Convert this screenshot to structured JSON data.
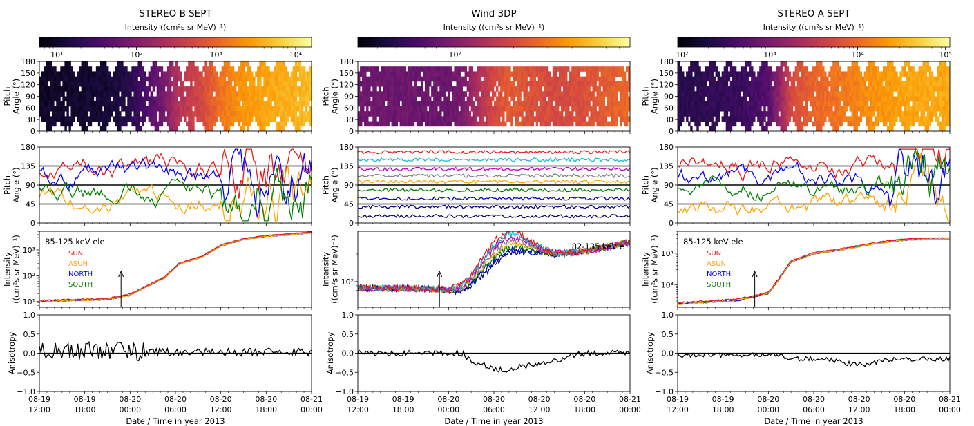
{
  "figure": {
    "xlabel": "Date / Time in year 2013",
    "row_ylabels": [
      [
        "Pitch",
        "Angle (°)"
      ],
      [
        "Pitch",
        "Angle (°)"
      ],
      [
        "Intensity",
        "((cm²s sr MeV)⁻¹)"
      ],
      [
        "Anisotropy"
      ]
    ],
    "x_ticks": [
      [
        "08-19",
        "12:00"
      ],
      [
        "08-19",
        "18:00"
      ],
      [
        "08-20",
        "00:00"
      ],
      [
        "08-20",
        "06:00"
      ],
      [
        "08-20",
        "12:00"
      ],
      [
        "08-20",
        "18:00"
      ],
      [
        "08-21",
        "00:00"
      ]
    ],
    "pitch_ticks": [
      "0",
      "30",
      "60",
      "90",
      "120",
      "150",
      "180"
    ],
    "pa_ticks": [
      "0",
      "45",
      "90",
      "135",
      "180"
    ],
    "aniso_ticks": [
      "−1.0",
      "−0.5",
      "0.0",
      "0.5",
      "1.0"
    ]
  },
  "colors": {
    "sun": "#e41a1c",
    "asun": "#ffa500",
    "north": "#0000ff",
    "south": "#008000",
    "colormap": [
      "#000004",
      "#1b0c41",
      "#4a0c6b",
      "#781c6d",
      "#a52c60",
      "#cf4446",
      "#ed6925",
      "#fb9b06",
      "#f7d13d",
      "#fcffa4"
    ]
  },
  "chart_data": [
    {
      "type": "line",
      "title": "STEREO B SEPT",
      "colorbar": {
        "label": "Intensity ((cm²s sr MeV)⁻¹)",
        "log_range": [
          0.78,
          4.2
        ],
        "ticks": [
          {
            "label": "10¹",
            "value": 10
          },
          {
            "label": "10²",
            "value": 100
          },
          {
            "label": "10³",
            "value": 1000
          },
          {
            "label": "10⁴",
            "value": 10000
          }
        ]
      },
      "energy_label": "85-125 keV ele",
      "legend": [
        "SUN",
        "ASUN",
        "NORTH",
        "SOUTH"
      ],
      "intensity_axis": {
        "log_range": [
          0.78,
          3.72
        ],
        "ticks": [
          {
            "label": "10¹",
            "value": 10
          },
          {
            "label": "10²",
            "value": 100
          },
          {
            "label": "10³",
            "value": 1000
          }
        ]
      },
      "onset_arrow_x": 10.8,
      "x_range_hours": [
        0,
        36
      ],
      "intensity_log_profile": [
        [
          0,
          1.0
        ],
        [
          9,
          1.08
        ],
        [
          12,
          1.25
        ],
        [
          14,
          1.55
        ],
        [
          16.5,
          1.9
        ],
        [
          18.5,
          2.45
        ],
        [
          21.5,
          2.72
        ],
        [
          24,
          3.15
        ],
        [
          27,
          3.4
        ],
        [
          30,
          3.52
        ],
        [
          33,
          3.58
        ],
        [
          36,
          3.66
        ]
      ],
      "pitch_angle_lines": {
        "pattern": "swapping",
        "means": [
          130,
          50,
          115,
          70
        ]
      },
      "anisotropy_profile": {
        "mean": 0.02,
        "spread": 0.17
      }
    },
    {
      "type": "line",
      "title": "Wind 3DP",
      "colorbar": {
        "label": "Intensity ((cm²s sr MeV)⁻¹)",
        "log_range": [
          1.5,
          2.9
        ],
        "ticks": [
          {
            "label": "10²",
            "value": 100
          }
        ]
      },
      "energy_label": "82-135 keV e",
      "legend": [],
      "intensity_axis": {
        "log_range": [
          1.72,
          2.55
        ],
        "ticks": [
          {
            "label": "10²",
            "value": 100
          }
        ]
      },
      "onset_arrow_x": 10.8,
      "x_range_hours": [
        0,
        36
      ],
      "intensity_log_profile": [
        [
          0,
          1.93
        ],
        [
          12,
          1.92
        ],
        [
          14,
          1.97
        ],
        [
          16,
          2.15
        ],
        [
          18,
          2.3
        ],
        [
          20,
          2.38
        ],
        [
          23,
          2.33
        ],
        [
          26,
          2.3
        ],
        [
          30,
          2.33
        ],
        [
          33,
          2.38
        ],
        [
          36,
          2.43
        ]
      ],
      "pitch_angle_lines": {
        "pattern": "fixed",
        "means": [
          168,
          150,
          128,
          112,
          98,
          78,
          58,
          38,
          16
        ]
      },
      "anisotropy_profile": {
        "mean": -0.05,
        "spread": 0.08
      }
    },
    {
      "type": "line",
      "title": "STEREO A SEPT",
      "colorbar": {
        "label": "Intensity ((cm²s sr MeV)⁻¹)",
        "log_range": [
          1.95,
          5.05
        ],
        "ticks": [
          {
            "label": "10²",
            "value": 100
          },
          {
            "label": "10³",
            "value": 1000
          },
          {
            "label": "10⁴",
            "value": 10000
          },
          {
            "label": "10⁵",
            "value": 100000
          }
        ]
      },
      "energy_label": "85-125 keV ele",
      "legend": [
        "SUN",
        "ASUN",
        "NORTH",
        "SOUTH"
      ],
      "intensity_axis": {
        "log_range": [
          2.28,
          4.7
        ],
        "ticks": [
          {
            "label": "10³",
            "value": 1000
          },
          {
            "label": "10⁴",
            "value": 10000
          }
        ]
      },
      "onset_arrow_x": 10.2,
      "x_range_hours": [
        0,
        36
      ],
      "intensity_log_profile": [
        [
          0,
          2.38
        ],
        [
          8,
          2.5
        ],
        [
          12,
          2.72
        ],
        [
          13.5,
          3.2
        ],
        [
          15,
          3.72
        ],
        [
          18,
          3.98
        ],
        [
          22,
          4.12
        ],
        [
          26,
          4.3
        ],
        [
          30,
          4.42
        ],
        [
          33,
          4.44
        ],
        [
          36,
          4.45
        ]
      ],
      "pitch_angle_lines": {
        "pattern": "swapping",
        "means": [
          140,
          40,
          100,
          80
        ]
      },
      "anisotropy_profile": {
        "mean": -0.12,
        "spread": 0.09
      }
    }
  ]
}
